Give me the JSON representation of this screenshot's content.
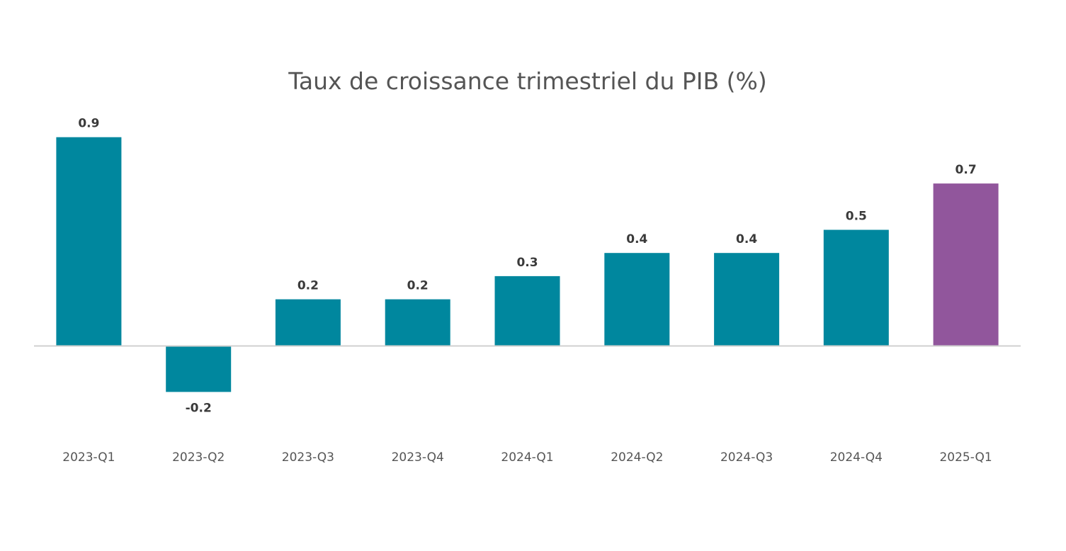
{
  "chart_data": {
    "type": "bar",
    "title": "Taux de croissance trimestriel du PIB (%)",
    "xlabel": "",
    "ylabel": "",
    "categories": [
      "2023-Q1",
      "2023-Q2",
      "2023-Q3",
      "2023-Q4",
      "2024-Q1",
      "2024-Q2",
      "2024-Q3",
      "2024-Q4",
      "2025-Q1"
    ],
    "values": [
      0.9,
      -0.2,
      0.2,
      0.2,
      0.3,
      0.4,
      0.4,
      0.5,
      0.7
    ],
    "value_labels": [
      "0.9",
      "-0.2",
      "0.2",
      "0.2",
      "0.3",
      "0.4",
      "0.4",
      "0.5",
      "0.7"
    ],
    "ylim": [
      -0.3,
      1.0
    ],
    "grid": false,
    "legend": "none",
    "colors": {
      "default_bar": "#00879e",
      "highlight_bar": "#91569c",
      "baseline": "#d0d0d0"
    },
    "highlight_index": 8
  }
}
